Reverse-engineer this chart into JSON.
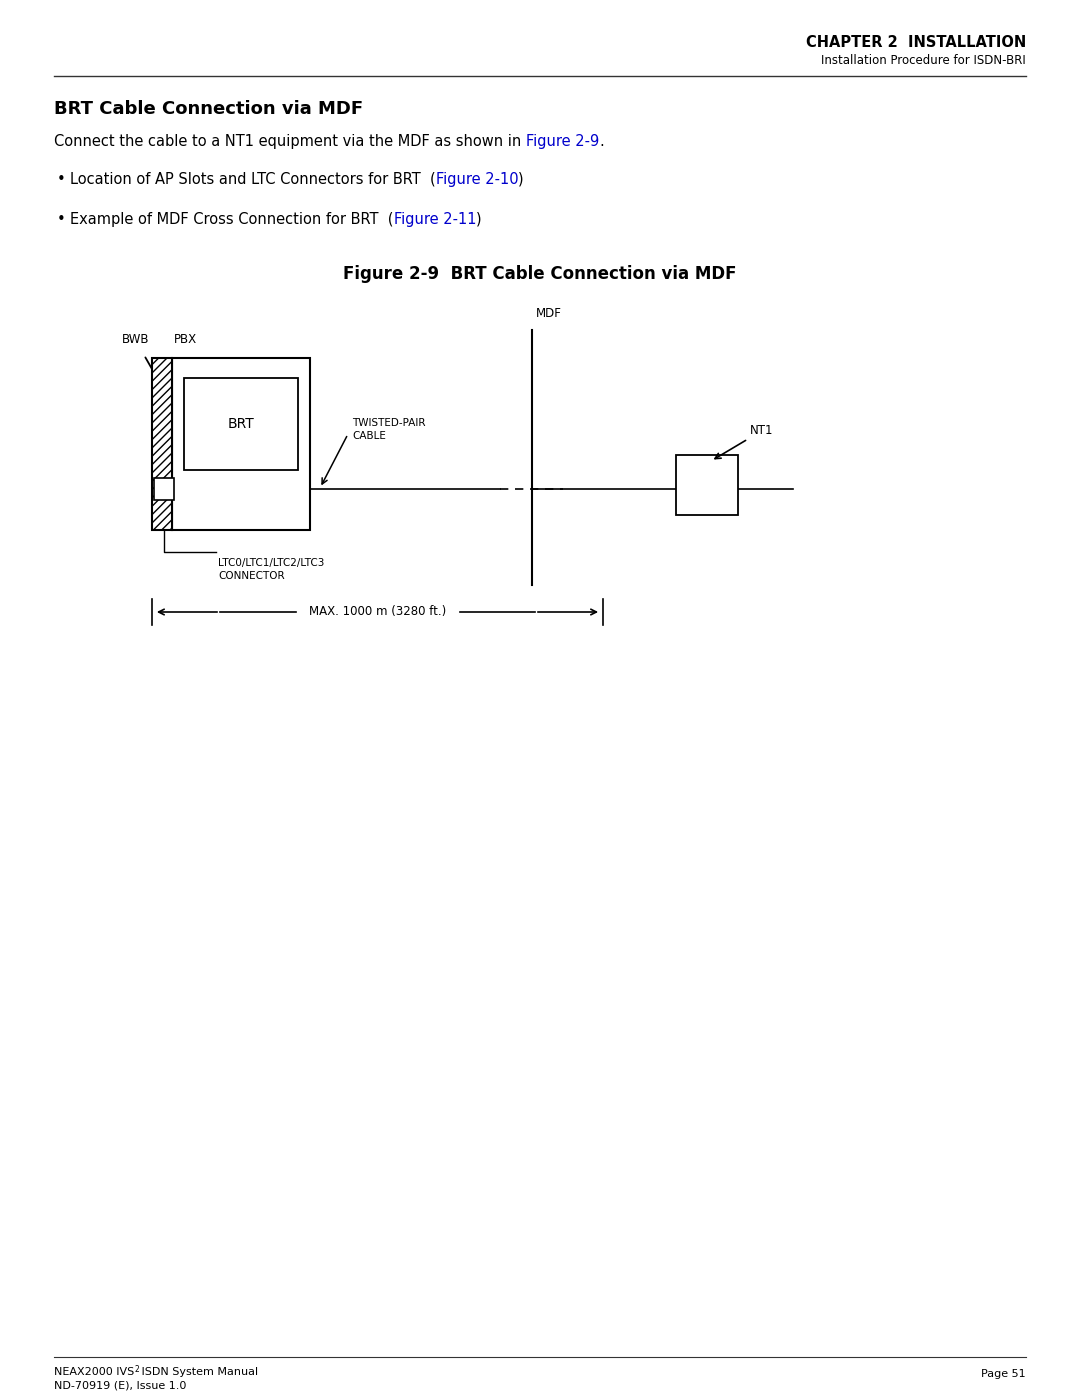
{
  "page_title_right_line1": "CHAPTER 2  INSTALLATION",
  "page_title_right_line2": "Installation Procedure for ISDN-BRI",
  "section_title": "BRT Cable Connection via MDF",
  "body_line1_pre": "Connect the cable to a NT1 equipment via the MDF as shown in ",
  "body_line1_link": "Figure 2-9",
  "body_line1_post": ".",
  "bullet1_pre": "Location of AP Slots and LTC Connectors for BRT  (",
  "bullet1_link": "Figure 2-10",
  "bullet1_post": ")",
  "bullet2_pre": "Example of MDF Cross Connection for BRT  (",
  "bullet2_link": "Figure 2-11",
  "bullet2_post": ")",
  "figure_title": "Figure 2-9  BRT Cable Connection via MDF",
  "label_bwb": "BWB",
  "label_pbx": "PBX",
  "label_brt": "BRT",
  "label_twisted1": "TWISTED-PAIR",
  "label_twisted2": "CABLE",
  "label_ltc1": "LTC0/LTC1/LTC2/LTC3",
  "label_ltc2": "CONNECTOR",
  "label_mdf": "MDF",
  "label_nt1": "NT1",
  "label_max": "MAX. 1000 m (3280 ft.)",
  "footer_left1": "NEAX2000 IVS",
  "footer_left_super": "2",
  "footer_left2": " ISDN System Manual",
  "footer_left3": "ND-70919 (E), Issue 1.0",
  "footer_right": "Page 51",
  "link_color": "#0000CC",
  "text_color": "#000000",
  "bg_color": "#FFFFFF"
}
